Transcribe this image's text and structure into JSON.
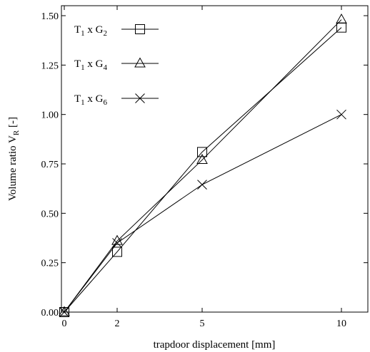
{
  "chart_data": {
    "type": "line",
    "title": "",
    "xlabel": "trapdoor displacement [mm]",
    "ylabel": "Volume ratio V",
    "ylabel_subscript": "R",
    "ylabel_suffix": " [-]",
    "xlim": [
      0,
      10
    ],
    "ylim": [
      0,
      1.5
    ],
    "x_scale": "piecewise: 0-2, 2-5, 5-10 mapped to equal-ish segments as drawn",
    "x_ticks": [
      0,
      2,
      5,
      10
    ],
    "x_tick_labels": [
      "0",
      "2",
      "5",
      "10"
    ],
    "y_ticks": [
      0,
      0.25,
      0.5,
      0.75,
      1.0,
      1.25,
      1.5
    ],
    "y_tick_labels": [
      "0.00",
      "0.25",
      "0.50",
      "0.75",
      "1.00",
      "1.25",
      "1.50"
    ],
    "grid": false,
    "legend_position": "top-left",
    "series": [
      {
        "name": "T1 x G2",
        "name_parts": {
          "a": "T",
          "a_sub": "1",
          "mid": " x G",
          "b_sub": "2"
        },
        "marker": "square",
        "x": [
          0,
          2,
          5,
          10
        ],
        "y": [
          0.0,
          0.305,
          0.81,
          1.44
        ]
      },
      {
        "name": "T1 x G4",
        "name_parts": {
          "a": "T",
          "a_sub": "1",
          "mid": " x G",
          "b_sub": "4"
        },
        "marker": "triangle",
        "x": [
          0,
          2,
          5,
          10
        ],
        "y": [
          0.0,
          0.36,
          0.77,
          1.48
        ]
      },
      {
        "name": "T1 x G6",
        "name_parts": {
          "a": "T",
          "a_sub": "1",
          "mid": " x G",
          "b_sub": "6"
        },
        "marker": "cross",
        "x": [
          0,
          2,
          5,
          10
        ],
        "y": [
          0.0,
          0.35,
          0.645,
          1.0
        ]
      }
    ]
  }
}
